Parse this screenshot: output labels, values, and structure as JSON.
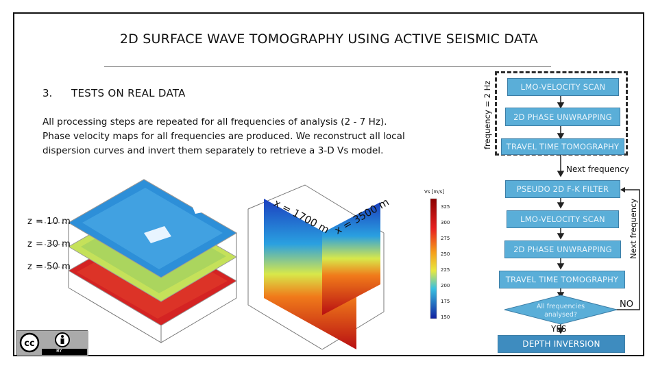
{
  "slide": {
    "title": "2D SURFACE WAVE TOMOGRAPHY USING ACTIVE SEISMIC DATA",
    "section_number": "3.",
    "section_title": "TESTS ON REAL DATA",
    "paragraph_lines": [
      "All processing steps are repeated for all frequencies of analysis (2 - 7 Hz).",
      "Phase velocity maps for all frequencies are produced. We reconstruct all local",
      "dispersion curves and invert them separately to retrieve a 3-D Vs model."
    ]
  },
  "depth_slices": {
    "labels": [
      "z = 10 m",
      "z = 30 m",
      "z = 50 m"
    ],
    "colors": [
      "#2d8fd8",
      "#c5e15a",
      "#d42323"
    ]
  },
  "section_view": {
    "profile_labels": [
      "x = 1700 m",
      "x = 3500 m"
    ],
    "colorbar": {
      "title": "Vs [m/s]",
      "ticks": [
        "325",
        "300",
        "275",
        "250",
        "225",
        "200",
        "175",
        "150"
      ]
    }
  },
  "flowchart": {
    "loop_label": "frequency = 2 Hz",
    "first_pass": [
      "LMO-VELOCITY SCAN",
      "2D PHASE UNWRAPPING",
      "TRAVEL TIME TOMOGRAPHY"
    ],
    "next_frequency_label": "Next frequency",
    "second_pass": [
      "PSEUDO 2D F-K FILTER",
      "LMO-VELOCITY SCAN",
      "2D PHASE UNWRAPPING",
      "TRAVEL TIME TOMOGRAPHY"
    ],
    "side_label": "Next frequency",
    "decision": "All frequencies analysed?",
    "no_label": "NO",
    "yes_label": "YES",
    "final_step": "DEPTH INVERSION",
    "accent_color": "#5aaed8"
  },
  "license": {
    "badge": "cc",
    "by": "BY"
  }
}
